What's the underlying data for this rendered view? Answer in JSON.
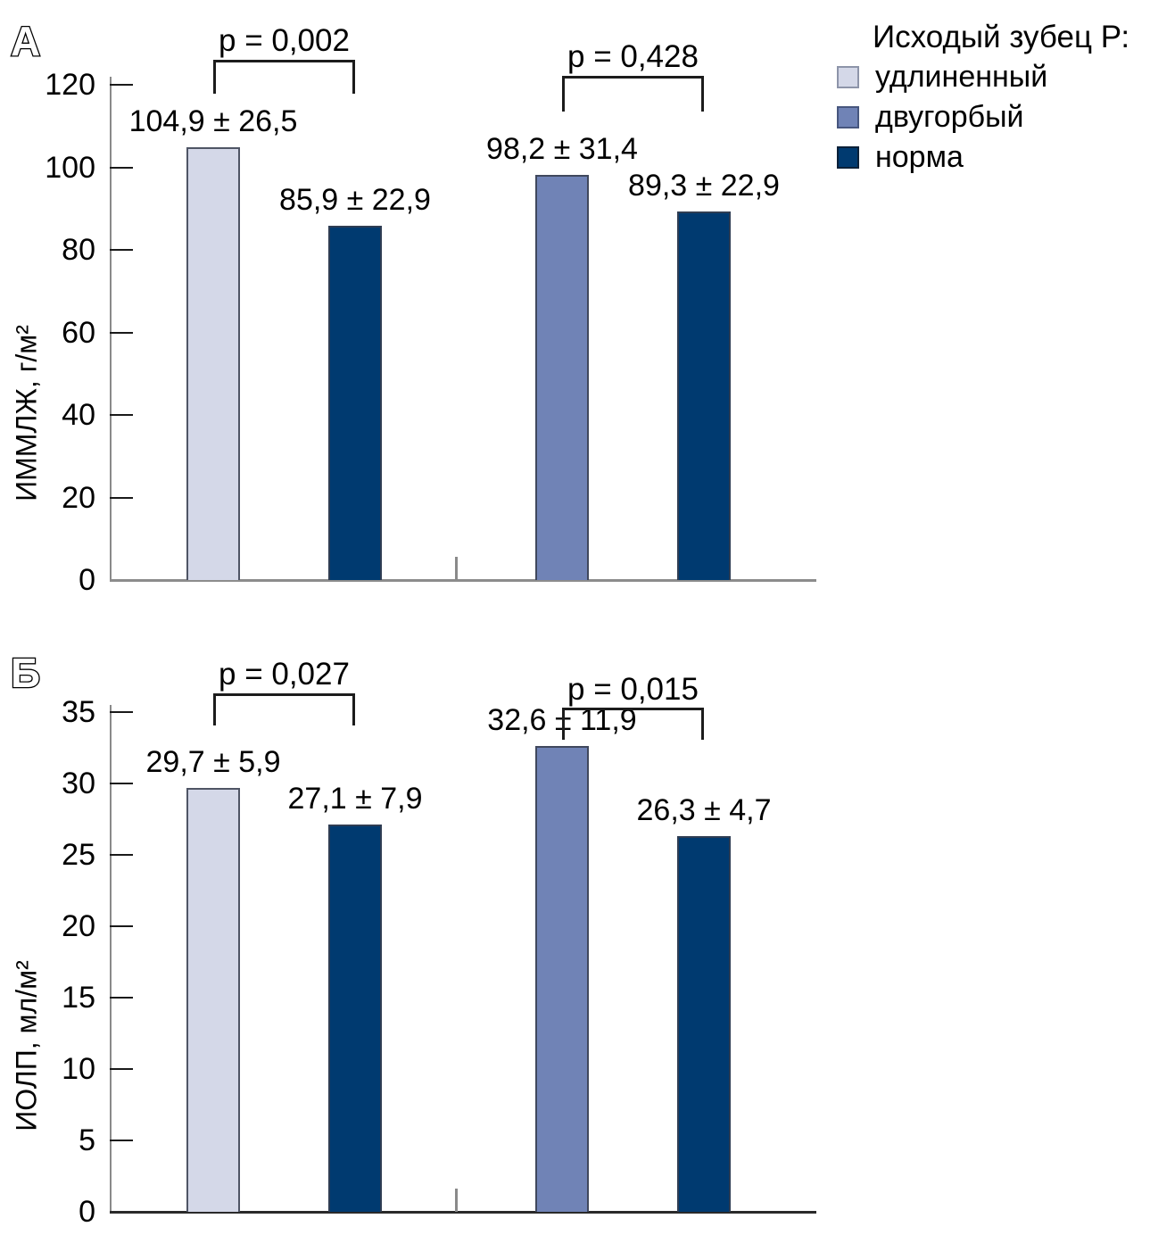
{
  "colors": {
    "background": "#ffffff",
    "bar_light": "#d4d8e8",
    "bar_medium": "#7083b6",
    "bar_dark": "#003a70",
    "bar_border": "#3c4456",
    "axis_line": "#8a8a8a",
    "tick": "#1a1a1a",
    "baseline_panel_a": "#8c8c8c",
    "baseline_panel_b": "#2a2a2a",
    "bracket": "#1c1c1c",
    "text": "#000000"
  },
  "legend": {
    "title": "Исходый зубец Р:",
    "items": [
      {
        "label": "удлиненный",
        "color_key": "bar_light",
        "color": "#d4d8e8",
        "border": "#8d94a9"
      },
      {
        "label": "двугорбый",
        "color_key": "bar_medium",
        "color": "#7083b6",
        "border": "#47567e"
      },
      {
        "label": "норма",
        "color_key": "bar_dark",
        "color": "#003a70",
        "border": "#0b2038"
      }
    ]
  },
  "chart_data": [
    {
      "type": "bar",
      "panel_label": "А",
      "ylabel": "ИММЛЖ, г/м²",
      "xlabel": "",
      "ylim": [
        0,
        120
      ],
      "yticks": [
        0,
        20,
        40,
        60,
        80,
        100,
        120
      ],
      "grid": false,
      "legend_position": "top-right",
      "categories": [
        "удлиненный",
        "норма",
        "двугорбый",
        "норма"
      ],
      "bars": [
        {
          "series": "удлиненный",
          "value": 104.9,
          "label": "104,9 ± 26,5",
          "color_key": "bar_light"
        },
        {
          "series": "норма",
          "value": 85.9,
          "label": "85,9 ± 22,9",
          "color_key": "bar_dark"
        },
        {
          "series": "двугорбый",
          "value": 98.2,
          "label": "98,2 ± 31,4",
          "color_key": "bar_medium"
        },
        {
          "series": "норма",
          "value": 89.3,
          "label": "89,3 ± 22,9",
          "color_key": "bar_dark"
        }
      ],
      "comparisons": [
        {
          "label": "p = 0,002",
          "between": [
            0,
            1
          ]
        },
        {
          "label": "p = 0,428",
          "between": [
            2,
            3
          ]
        }
      ]
    },
    {
      "type": "bar",
      "panel_label": "Б",
      "ylabel": "ИОЛП, мл/м²",
      "xlabel": "",
      "ylim": [
        0,
        35
      ],
      "yticks": [
        0,
        5,
        10,
        15,
        20,
        25,
        30,
        35
      ],
      "grid": false,
      "legend_position": "none",
      "categories": [
        "удлиненный",
        "норма",
        "двугорбый",
        "норма"
      ],
      "bars": [
        {
          "series": "удлиненный",
          "value": 29.7,
          "label": "29,7 ± 5,9",
          "color_key": "bar_light"
        },
        {
          "series": "норма",
          "value": 27.1,
          "label": "27,1 ± 7,9",
          "color_key": "bar_dark"
        },
        {
          "series": "двугорбый",
          "value": 32.6,
          "label": "32,6 ± 11,9",
          "color_key": "bar_medium"
        },
        {
          "series": "норма",
          "value": 26.3,
          "label": "26,3 ± 4,7",
          "color_key": "bar_dark"
        }
      ],
      "comparisons": [
        {
          "label": "p = 0,027",
          "between": [
            0,
            1
          ]
        },
        {
          "label": "p = 0,015",
          "between": [
            2,
            3
          ]
        }
      ]
    }
  ]
}
